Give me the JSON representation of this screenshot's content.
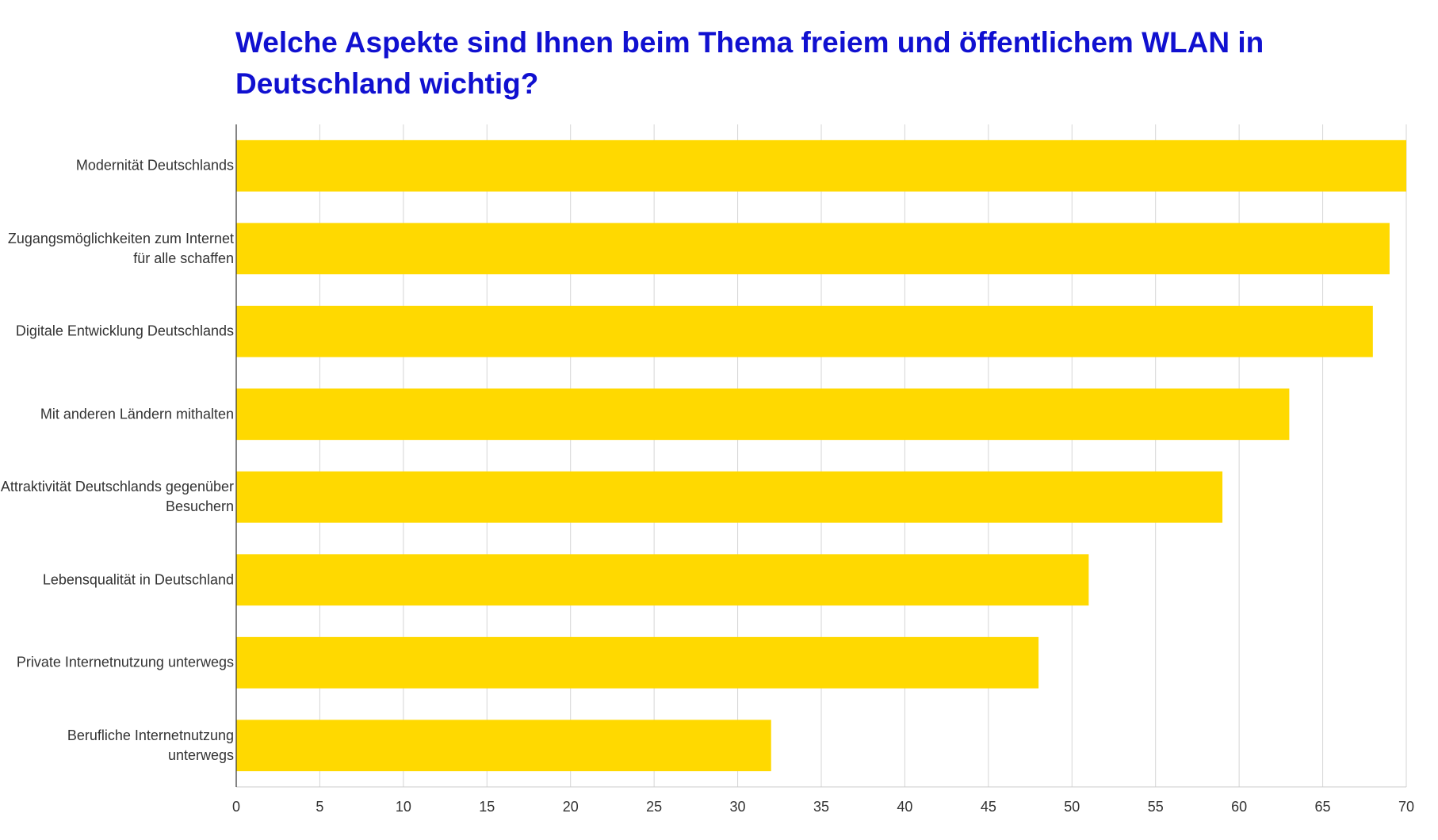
{
  "chart_data": {
    "type": "bar",
    "orientation": "horizontal",
    "title": "Welche Aspekte sind Ihnen beim Thema freiem und öffentlichem WLAN in Deutschland wichtig?",
    "categories": [
      "Modernität Deutschlands",
      "Zugangsmöglichkeiten zum Internet für alle schaffen",
      "Digitale Entwicklung Deutschlands",
      "Mit anderen Ländern mithalten",
      "Attraktivität Deutschlands gegenüber Besuchern",
      "Lebensqualität in Deutschland",
      "Private Internetnutzung unterwegs",
      "Berufliche Internetnutzung unterwegs"
    ],
    "values": [
      70,
      69,
      68,
      63,
      59,
      51,
      48,
      32
    ],
    "color": "#ffd900",
    "xlim": [
      0,
      70
    ],
    "xticks": [
      0,
      5,
      10,
      15,
      20,
      25,
      30,
      35,
      40,
      45,
      50,
      55,
      60,
      65,
      70
    ],
    "grid": true
  }
}
